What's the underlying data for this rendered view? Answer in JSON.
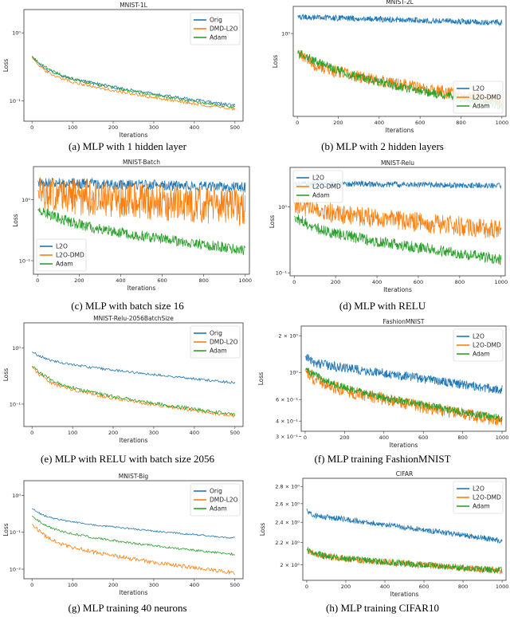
{
  "colors": {
    "series1": "#1f77b4",
    "series2": "#ff7f0e",
    "series3": "#2ca02c"
  },
  "chart_data": [
    {
      "id": "a",
      "type": "line",
      "title": "MNIST-1L",
      "xlabel": "Iterations",
      "ylabel": "Loss",
      "caption": "(a) MLP with 1 hidden layer",
      "xlim": [
        -20,
        520
      ],
      "ylog": true,
      "ylim": [
        0.05,
        2.2
      ],
      "xticks": [
        0,
        100,
        200,
        300,
        400,
        500
      ],
      "xtick_labels": [
        "0",
        "100",
        "200",
        "300",
        "400",
        "500"
      ],
      "yticks": [
        1,
        0.1
      ],
      "ytick_labels": [
        "10⁰",
        "10⁻¹"
      ],
      "legend": "top-right",
      "series": [
        {
          "name": "Orig",
          "n": 500,
          "start": 1.8,
          "end": 0.085,
          "decay": 20,
          "curve": 0.55,
          "noise": 0.05,
          "seed": 1
        },
        {
          "name": "DMD-L2O",
          "n": 500,
          "start": 1.8,
          "end": 0.075,
          "decay": 22,
          "curve": 0.6,
          "noise": 0.05,
          "seed": 2
        },
        {
          "name": "Adam",
          "n": 500,
          "start": 1.8,
          "end": 0.08,
          "decay": 30,
          "curve": 0.5,
          "noise": 0.05,
          "seed": 3
        }
      ]
    },
    {
      "id": "b",
      "type": "line",
      "title": "MNIST-2L",
      "xlabel": "Iterations",
      "ylabel": "Loss",
      "caption": "(b) MLP with 2 hidden layers",
      "xlim": [
        -20,
        1020
      ],
      "ylog": true,
      "ylim": [
        0.035,
        3.0
      ],
      "xticks": [
        0,
        200,
        400,
        600,
        800,
        1000
      ],
      "xtick_labels": [
        "0",
        "200",
        "400",
        "600",
        "800",
        "1000"
      ],
      "yticks": [
        1
      ],
      "ytick_labels": [
        "10⁰"
      ],
      "legend": "bottom-right",
      "series": [
        {
          "name": "L2O",
          "n": 1000,
          "start": 2.6,
          "end": 1.55,
          "decay": 10,
          "curve": 0.0,
          "noise": 0.12,
          "seed": 4
        },
        {
          "name": "L2O-DMD",
          "n": 1000,
          "start": 2.6,
          "end": 0.065,
          "decay": 40,
          "curve": 0.4,
          "noise": 0.25,
          "seed": 5
        },
        {
          "name": "Adam",
          "n": 1000,
          "start": 2.6,
          "end": 0.055,
          "decay": 120,
          "curve": 0.35,
          "noise": 0.18,
          "seed": 6
        }
      ]
    },
    {
      "id": "c",
      "type": "line",
      "title": "MNIST-Batch",
      "xlabel": "Iterations",
      "ylabel": "Loss",
      "caption": "(c) MLP with batch size 16",
      "xlim": [
        -20,
        1020
      ],
      "ylog": true,
      "ylim": [
        0.06,
        3.5
      ],
      "xticks": [
        0,
        200,
        400,
        600,
        800,
        1000
      ],
      "xtick_labels": [
        "0",
        "200",
        "400",
        "600",
        "800",
        "1000"
      ],
      "yticks": [
        1,
        0.1
      ],
      "ytick_labels": [
        "10⁰",
        "10⁻¹"
      ],
      "legend": "bottom-left",
      "series": [
        {
          "name": "L2O",
          "n": 1000,
          "start": 2.4,
          "end": 1.6,
          "decay": 10,
          "curve": 0.0,
          "noise": 0.2,
          "seed": 7
        },
        {
          "name": "L2O-DMD",
          "n": 1000,
          "start": 2.4,
          "end": 0.75,
          "decay": 30,
          "curve": 0.2,
          "noise": 0.7,
          "seed": 8
        },
        {
          "name": "Adam",
          "n": 1000,
          "start": 2.4,
          "end": 0.15,
          "decay": 90,
          "curve": 0.35,
          "noise": 0.2,
          "seed": 9
        }
      ]
    },
    {
      "id": "d",
      "type": "line",
      "title": "MNIST-Relu",
      "xlabel": "Iterations",
      "ylabel": "Loss",
      "caption": "(d) MLP with RELU",
      "xlim": [
        -20,
        1020
      ],
      "ylog": true,
      "ylim": [
        0.09,
        4.0
      ],
      "xticks": [
        0,
        200,
        400,
        600,
        800,
        1000
      ],
      "xtick_labels": [
        "0",
        "200",
        "400",
        "600",
        "800",
        "1000"
      ],
      "yticks": [
        1,
        0.1
      ],
      "ytick_labels": [
        "10⁰",
        "10⁻¹"
      ],
      "legend": "top-left",
      "series": [
        {
          "name": "L2O",
          "n": 1000,
          "start": 2.5,
          "end": 2.1,
          "decay": 30,
          "curve": -0.6,
          "noise": 0.1,
          "seed": 10
        },
        {
          "name": "L2O-DMD",
          "n": 1000,
          "start": 2.5,
          "end": 0.45,
          "decay": 40,
          "curve": 0.3,
          "noise": 0.35,
          "seed": 11
        },
        {
          "name": "Adam",
          "n": 1000,
          "start": 2.5,
          "end": 0.16,
          "decay": 60,
          "curve": 0.35,
          "noise": 0.2,
          "seed": 12
        }
      ]
    },
    {
      "id": "e",
      "type": "line",
      "title": "MNIST-Relu-2056BatchSize",
      "xlabel": "Iterations",
      "ylabel": "Loss",
      "caption": "(e) MLP with RELU with batch size 2056",
      "xlim": [
        -20,
        520
      ],
      "ylog": true,
      "ylim": [
        0.04,
        2.8
      ],
      "xticks": [
        0,
        100,
        200,
        300,
        400,
        500
      ],
      "xtick_labels": [
        "0",
        "100",
        "200",
        "300",
        "400",
        "500"
      ],
      "yticks": [
        1,
        0.1
      ],
      "ytick_labels": [
        "10⁰",
        "10⁻¹"
      ],
      "legend": "top-right",
      "series": [
        {
          "name": "Orig",
          "n": 500,
          "start": 2.4,
          "end": 0.24,
          "decay": 25,
          "curve": 0.4,
          "noise": 0.05,
          "seed": 13
        },
        {
          "name": "DMD-L2O",
          "n": 500,
          "start": 2.4,
          "end": 0.062,
          "decay": 22,
          "curve": 0.6,
          "noise": 0.07,
          "seed": 14
        },
        {
          "name": "Adam",
          "n": 500,
          "start": 2.4,
          "end": 0.065,
          "decay": 30,
          "curve": 0.55,
          "noise": 0.07,
          "seed": 15
        }
      ]
    },
    {
      "id": "f",
      "type": "line",
      "title": "FashionMNIST",
      "xlabel": "Iterations",
      "ylabel": "Loss",
      "caption": "(f) MLP training FashionMNIST",
      "xlim": [
        -20,
        1020
      ],
      "ylog": true,
      "ylim": [
        0.33,
        2.4
      ],
      "xticks": [
        0,
        200,
        400,
        600,
        800,
        1000
      ],
      "xtick_labels": [
        "0",
        "200",
        "400",
        "600",
        "800",
        "1000"
      ],
      "yticks": [
        2,
        1,
        0.6,
        0.4,
        0.3
      ],
      "ytick_labels": [
        "2 × 10⁰",
        "10⁰",
        "6 × 10⁻¹",
        "4 × 10⁻¹",
        "3 × 10⁻¹"
      ],
      "legend": "top-right",
      "series": [
        {
          "name": "L2O",
          "n": 1000,
          "start": 2.3,
          "end": 0.72,
          "decay": 25,
          "curve": 0.0,
          "noise": 0.09,
          "seed": 16
        },
        {
          "name": "L2O-DMD",
          "n": 1000,
          "start": 2.3,
          "end": 0.4,
          "decay": 40,
          "curve": 0.3,
          "noise": 0.12,
          "seed": 17
        },
        {
          "name": "Adam",
          "n": 1000,
          "start": 2.3,
          "end": 0.42,
          "decay": 80,
          "curve": 0.35,
          "noise": 0.07,
          "seed": 18
        }
      ]
    },
    {
      "id": "g",
      "type": "line",
      "title": "MNIST-Big",
      "xlabel": "Iterations",
      "ylabel": "Loss",
      "caption": "(g) MLP training 40 neurons",
      "xlim": [
        -20,
        520
      ],
      "ylog": true,
      "ylim": [
        0.0055,
        2.5
      ],
      "xticks": [
        0,
        100,
        200,
        300,
        400,
        500
      ],
      "xtick_labels": [
        "0",
        "100",
        "200",
        "300",
        "400",
        "500"
      ],
      "yticks": [
        1,
        0.1,
        0.01
      ],
      "ytick_labels": [
        "10⁰",
        "10⁻¹",
        "10⁻²"
      ],
      "legend": "top-right",
      "series": [
        {
          "name": "Orig",
          "n": 500,
          "start": 2.0,
          "end": 0.07,
          "decay": 20,
          "curve": 0.55,
          "noise": 0.05,
          "seed": 19
        },
        {
          "name": "DMD-L2O",
          "n": 500,
          "start": 2.0,
          "end": 0.008,
          "decay": 25,
          "curve": 0.65,
          "noise": 0.12,
          "seed": 20
        },
        {
          "name": "Adam",
          "n": 500,
          "start": 2.0,
          "end": 0.025,
          "decay": 25,
          "curve": 0.6,
          "noise": 0.07,
          "seed": 21
        }
      ]
    },
    {
      "id": "h",
      "type": "line",
      "title": "CIFAR",
      "xlabel": "Iterations",
      "ylabel": "Loss",
      "caption": "(h) MLP training CIFAR10",
      "xlim": [
        -20,
        1020
      ],
      "ylog": true,
      "ylim": [
        1.87,
        2.9
      ],
      "xticks": [
        0,
        200,
        400,
        600,
        800,
        1000
      ],
      "xtick_labels": [
        "0",
        "200",
        "400",
        "600",
        "800",
        "1000"
      ],
      "yticks": [
        2.8,
        2.6,
        2.4,
        2.2,
        2.0
      ],
      "ytick_labels": [
        "2.8 × 10⁰",
        "2.6 × 10⁰",
        "2.4 × 10⁰",
        "2.2 × 10⁰",
        "2 × 10⁰"
      ],
      "legend": "top-right",
      "series": [
        {
          "name": "L2O",
          "n": 1000,
          "start": 2.85,
          "end": 2.22,
          "decay": 8,
          "curve": 0.0,
          "noise": 0.012,
          "seed": 22
        },
        {
          "name": "L2O-DMD",
          "n": 1000,
          "start": 2.3,
          "end": 1.95,
          "decay": 30,
          "curve": 0.4,
          "noise": 0.015,
          "seed": 23
        },
        {
          "name": "Adam",
          "n": 1000,
          "start": 2.3,
          "end": 1.95,
          "decay": 30,
          "curve": 0.4,
          "noise": 0.014,
          "seed": 24
        }
      ]
    }
  ]
}
